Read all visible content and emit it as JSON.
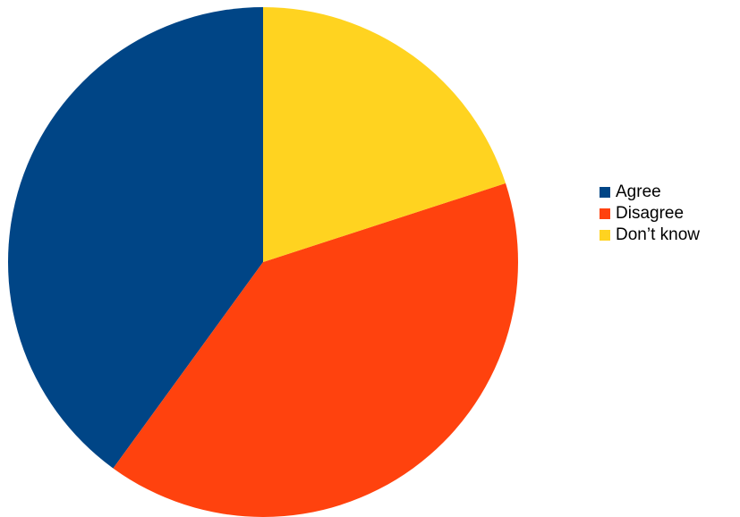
{
  "chart_data": {
    "type": "pie",
    "title": "",
    "categories": [
      "Agree",
      "Disagree",
      "Don’t know"
    ],
    "values": [
      40,
      40,
      20
    ],
    "unit": "%",
    "start_angle_deg": 0,
    "direction": "counterclockwise",
    "colors": [
      "#004586",
      "#ff420e",
      "#ffd320"
    ],
    "legend_position": "right"
  }
}
